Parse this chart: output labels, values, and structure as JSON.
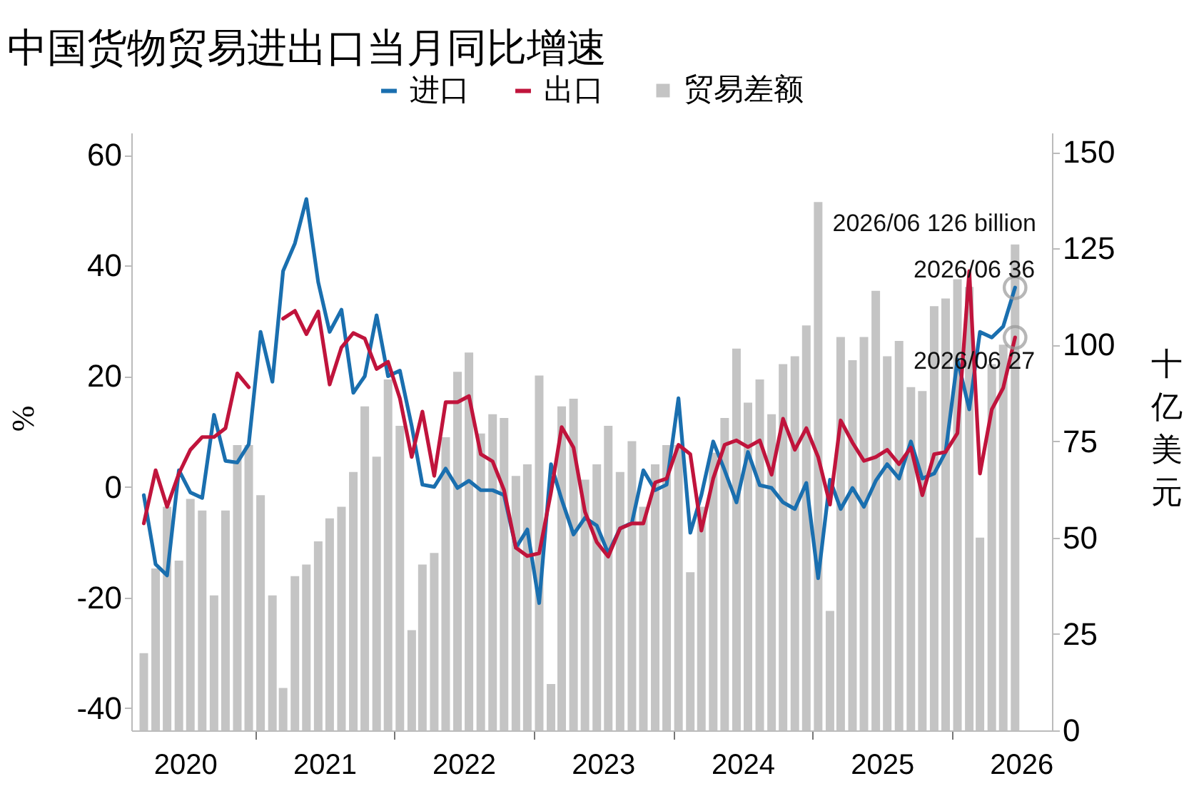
{
  "chart_data": {
    "type": "line",
    "title": "中国货物贸易进出口当月同比增速",
    "ylabel": "%",
    "y2label": "十亿美元",
    "x": [
      "2020-03-15",
      "2020-04-15",
      "2020-05-15",
      "2020-06-15",
      "2020-07-15",
      "2020-08-15",
      "2020-09-15",
      "2020-10-15",
      "2020-11-15",
      "2020-12-15",
      "2021-01-15",
      "2021-02-15",
      "2021-03-15",
      "2021-04-15",
      "2021-05-15",
      "2021-06-15",
      "2021-07-15",
      "2021-08-15",
      "2021-09-15",
      "2021-10-15",
      "2021-11-15",
      "2021-12-15",
      "2022-01-15",
      "2022-02-15",
      "2022-03-15",
      "2022-04-15",
      "2022-05-15",
      "2022-06-15",
      "2022-07-15",
      "2022-08-15",
      "2022-09-15",
      "2022-10-15",
      "2022-11-15",
      "2022-12-15",
      "2023-01-15",
      "2023-02-15",
      "2023-03-15",
      "2023-04-15",
      "2023-05-15",
      "2023-06-15",
      "2023-07-15",
      "2023-08-15",
      "2023-09-15",
      "2023-10-15",
      "2023-11-15",
      "2023-12-15",
      "2024-01-15",
      "2024-02-15",
      "2024-03-15",
      "2024-04-15",
      "2024-05-15",
      "2024-06-15",
      "2024-07-15",
      "2024-08-15",
      "2024-09-15",
      "2024-10-15",
      "2024-11-15",
      "2024-12-15",
      "2025-01-15",
      "2025-02-15",
      "2025-03-15",
      "2025-04-15",
      "2025-05-15",
      "2025-06-15",
      "2025-07-15",
      "2025-08-15",
      "2025-09-15",
      "2025-10-15",
      "2025-11-15",
      "2025-12-15",
      "2026-01-15",
      "2026-02-15",
      "2026-03-15",
      "2026-04-15",
      "2026-05-15",
      "2026-06-15"
    ],
    "series": [
      {
        "name": "贸易差额",
        "type": "bar",
        "axis": "y2",
        "color": "#c4c4c4",
        "values": [
          20,
          42,
          58,
          44,
          60,
          57,
          35,
          57,
          74,
          74,
          61,
          35,
          11,
          40,
          43,
          49,
          55,
          58,
          67,
          84,
          71,
          91,
          79,
          26,
          43,
          46,
          76,
          93,
          98,
          77,
          82,
          81,
          66,
          69,
          92,
          12,
          84,
          86,
          65,
          69,
          79,
          67,
          75,
          58,
          69,
          74,
          74,
          41,
          58,
          72,
          81,
          99,
          85,
          91,
          82,
          95,
          97,
          105,
          137,
          31,
          102,
          96,
          102,
          114,
          97,
          101,
          89,
          88,
          110,
          112,
          117,
          115,
          50,
          95,
          100,
          126
        ]
      },
      {
        "name": "进口",
        "color": "#1a6faf",
        "values": [
          -1.5,
          -14,
          -16,
          3,
          -1,
          -2,
          13,
          4.7,
          4.4,
          7.7,
          28,
          19,
          39,
          44,
          52,
          37,
          28,
          32,
          17,
          20,
          31,
          20,
          21,
          11,
          0.4,
          0,
          3.3,
          -0.2,
          1.1,
          -0.6,
          -0.6,
          -1.5,
          -11,
          -7.7,
          -21,
          4.1,
          -2.3,
          -8.6,
          -5.6,
          -7,
          -12,
          -7.5,
          -6.5,
          3,
          -0.6,
          0.4,
          16,
          -8.3,
          -1.5,
          8.2,
          3,
          -2.8,
          6.3,
          0.3,
          -0.2,
          -2.8,
          -4,
          0.7,
          -16.5,
          1.3,
          -4,
          -0.2,
          -3.6,
          1.1,
          4.1,
          1.5,
          8.2,
          1.5,
          2.4,
          6.3,
          23,
          14,
          28,
          27,
          29,
          36
        ]
      },
      {
        "name": "出口",
        "color": "#c0143c",
        "values": [
          -6.6,
          3,
          -3.6,
          2.4,
          6.7,
          9,
          9,
          10.6,
          20.5,
          18,
          null,
          null,
          30.4,
          31.8,
          27.6,
          31.7,
          18.5,
          25.2,
          27.8,
          26.8,
          21.3,
          22.6,
          16,
          5.4,
          13.6,
          2,
          15.3,
          15.3,
          16.4,
          5.9,
          4.6,
          -0.6,
          -11,
          -12.5,
          -12,
          -1,
          10.8,
          7.1,
          -4.5,
          -10,
          -12.6,
          -7.5,
          -6.6,
          -6.6,
          0.8,
          1.5,
          7.6,
          5.9,
          -7.9,
          1.5,
          7.6,
          8.4,
          7.2,
          8.4,
          2.2,
          12.3,
          6.7,
          10.6,
          5.4,
          -3.2,
          12,
          8,
          4.7,
          5.4,
          6.7,
          4.1,
          7.1,
          -1.5,
          5.9,
          6.3,
          9.7,
          39,
          2.4,
          14,
          17.9,
          27
        ]
      }
    ],
    "annotations": [
      "2026/06 126 billion",
      {
        "text": "2026/06 36",
        "x": "2026-06-15",
        "y": 36
      },
      {
        "text": "2026/06 27",
        "x": "2026-06-15",
        "y": 27
      }
    ],
    "xlim": [
      "2020-03-01",
      "2026-09-01"
    ],
    "xticks": [
      {
        "value": "2020-07-01",
        "label": "2020"
      },
      {
        "value": "2021-07-01",
        "label": "2021"
      },
      {
        "value": "2022-07-01",
        "label": "2022"
      },
      {
        "value": "2023-07-01",
        "label": "2023"
      },
      {
        "value": "2024-07-01",
        "label": "2024"
      },
      {
        "value": "2025-07-01",
        "label": "2025"
      },
      {
        "value": "2026-07-01",
        "label": "2026"
      },
      {
        "value": "2021-01-01",
        "label": null
      },
      {
        "value": "2022-01-01",
        "label": null
      },
      {
        "value": "2023-01-01",
        "label": null
      },
      {
        "value": "2024-01-01",
        "label": null
      },
      {
        "value": "2025-01-01",
        "label": null
      },
      {
        "value": "2026-01-01",
        "label": null
      }
    ],
    "ylim": [
      -44,
      64
    ],
    "yticks": [
      -40,
      -20,
      0,
      20,
      40,
      60
    ],
    "y2lim": [
      0,
      155
    ],
    "y2ticks": [
      0,
      25,
      50,
      75,
      100,
      125,
      150
    ],
    "grid": false,
    "legend": "top"
  }
}
